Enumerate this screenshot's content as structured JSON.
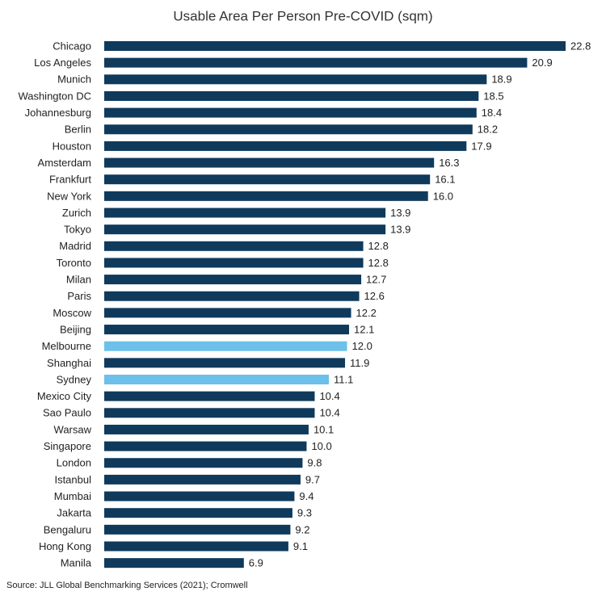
{
  "chart_data": {
    "type": "hbar",
    "title": "Usable Area Per Person Pre-COVID (sqm)",
    "source": "Source: JLL Global Benchmarking Services (2021); Cromwell",
    "categories": [
      "Chicago",
      "Los Angeles",
      "Munich",
      "Washington DC",
      "Johannesburg",
      "Berlin",
      "Houston",
      "Amsterdam",
      "Frankfurt",
      "New York",
      "Zurich",
      "Tokyo",
      "Madrid",
      "Toronto",
      "Milan",
      "Paris",
      "Moscow",
      "Beijing",
      "Melbourne",
      "Shanghai",
      "Sydney",
      "Mexico City",
      "Sao Paulo",
      "Warsaw",
      "Singapore",
      "London",
      "Istanbul",
      "Mumbai",
      "Jakarta",
      "Bengaluru",
      "Hong Kong",
      "Manila"
    ],
    "values": [
      22.8,
      20.9,
      18.9,
      18.5,
      18.4,
      18.2,
      17.9,
      16.3,
      16.1,
      16.0,
      13.9,
      13.9,
      12.8,
      12.8,
      12.7,
      12.6,
      12.2,
      12.1,
      12.0,
      11.9,
      11.1,
      10.4,
      10.4,
      10.1,
      10.0,
      9.8,
      9.7,
      9.4,
      9.3,
      9.2,
      9.1,
      6.9
    ],
    "value_labels": [
      "22.8",
      "20.9",
      "18.9",
      "18.5",
      "18.4",
      "18.2",
      "17.9",
      "16.3",
      "16.1",
      "16.0",
      "13.9",
      "13.9",
      "12.8",
      "12.8",
      "12.7",
      "12.6",
      "12.2",
      "12.1",
      "12.0",
      "11.9",
      "11.1",
      "10.4",
      "10.4",
      "10.1",
      "10.0",
      "9.8",
      "9.7",
      "9.4",
      "9.3",
      "9.2",
      "9.1",
      "6.9"
    ],
    "colors": [
      "#0f3a5c",
      "#0f3a5c",
      "#0f3a5c",
      "#0f3a5c",
      "#0f3a5c",
      "#0f3a5c",
      "#0f3a5c",
      "#0f3a5c",
      "#0f3a5c",
      "#0f3a5c",
      "#0f3a5c",
      "#0f3a5c",
      "#0f3a5c",
      "#0f3a5c",
      "#0f3a5c",
      "#0f3a5c",
      "#0f3a5c",
      "#0f3a5c",
      "#6cc0e9",
      "#0f3a5c",
      "#6cc0e9",
      "#0f3a5c",
      "#0f3a5c",
      "#0f3a5c",
      "#0f3a5c",
      "#0f3a5c",
      "#0f3a5c",
      "#0f3a5c",
      "#0f3a5c",
      "#0f3a5c",
      "#0f3a5c",
      "#0f3a5c"
    ]
  }
}
